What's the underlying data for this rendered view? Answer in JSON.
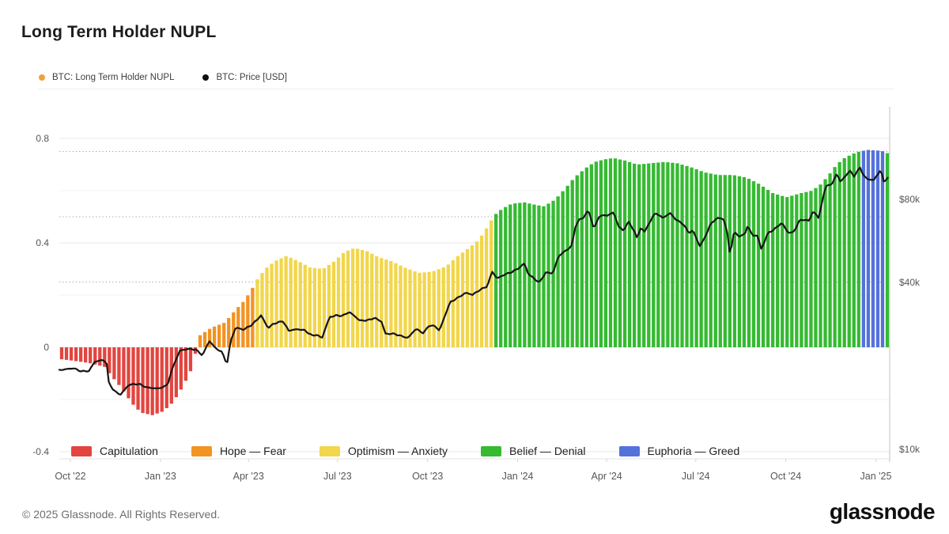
{
  "header": {
    "title": "Long Term Holder NUPL"
  },
  "top_legend": {
    "items": [
      {
        "label": "BTC: Long Term Holder NUPL",
        "color": "#eda23c"
      },
      {
        "label": "BTC: Price [USD]",
        "color": "#111111"
      }
    ]
  },
  "bottom_legend": {
    "items": [
      {
        "label": "Capitulation",
        "color": "#e2453f"
      },
      {
        "label": "Hope — Fear",
        "color": "#f29322"
      },
      {
        "label": "Optimism — Anxiety",
        "color": "#f2d64b"
      },
      {
        "label": "Belief — Denial",
        "color": "#35ba32"
      },
      {
        "label": "Euphoria — Greed",
        "color": "#5571da"
      }
    ]
  },
  "footer": {
    "copyright": "© 2025 Glassnode. All Rights Reserved.",
    "logo_text": "glassnode"
  },
  "chart_data": {
    "type": "bar+line",
    "title": "Long Term Holder NUPL",
    "x_axis": {
      "ticks": [
        {
          "date": "2022-10-01",
          "label": "Oct '22"
        },
        {
          "date": "2023-01-01",
          "label": "Jan '23"
        },
        {
          "date": "2023-04-01",
          "label": "Apr '23"
        },
        {
          "date": "2023-07-01",
          "label": "Jul '23"
        },
        {
          "date": "2023-10-01",
          "label": "Oct '23"
        },
        {
          "date": "2024-01-01",
          "label": "Jan '24"
        },
        {
          "date": "2024-04-01",
          "label": "Apr '24"
        },
        {
          "date": "2024-07-01",
          "label": "Jul '24"
        },
        {
          "date": "2024-10-01",
          "label": "Oct '24"
        },
        {
          "date": "2025-01-01",
          "label": "Jan '25"
        }
      ]
    },
    "left_axis": {
      "ticks": [
        {
          "label": "0.8",
          "value": 0.8
        },
        {
          "label": "0.4",
          "value": 0.4
        },
        {
          "label": "0",
          "value": 0
        },
        {
          "label": "-0.4",
          "value": -0.4
        }
      ],
      "range": [
        -0.43,
        0.91
      ]
    },
    "right_axis": {
      "scale": "log",
      "ticks": [
        {
          "label": "$80k",
          "value": 80000
        },
        {
          "label": "$40k",
          "value": 40000
        },
        {
          "label": "$10k",
          "value": 10000
        }
      ]
    },
    "grid": {
      "solid_levels": [
        0.8,
        0.6,
        0.4,
        0.2,
        0,
        -0.2,
        -0.4
      ],
      "dotted_levels": [
        0.25,
        0.5,
        0.75
      ]
    },
    "bands": [
      {
        "label": "Capitulation",
        "max": 0,
        "color": "#e2453f"
      },
      {
        "label": "Hope — Fear",
        "min": 0,
        "max": 0.25,
        "color": "#f29322"
      },
      {
        "label": "Optimism — Anxiety",
        "min": 0.25,
        "max": 0.5,
        "color": "#f2d64b"
      },
      {
        "label": "Belief — Denial",
        "min": 0.5,
        "max": 0.75,
        "color": "#35ba32"
      },
      {
        "label": "Euphoria — Greed",
        "min": 0.75,
        "color": "#5571da"
      }
    ],
    "series": [
      {
        "name": "BTC: Long Term Holder NUPL",
        "style": "bars",
        "axis": "left",
        "color_by_band": true,
        "keyframes": [
          [
            "2022-09-20",
            -0.045
          ],
          [
            "2022-10-01",
            -0.05
          ],
          [
            "2022-10-20",
            -0.06
          ],
          [
            "2022-11-05",
            -0.075
          ],
          [
            "2022-11-12",
            -0.11
          ],
          [
            "2022-11-22",
            -0.155
          ],
          [
            "2022-12-03",
            -0.215
          ],
          [
            "2022-12-12",
            -0.25
          ],
          [
            "2022-12-24",
            -0.26
          ],
          [
            "2023-01-04",
            -0.245
          ],
          [
            "2023-01-14",
            -0.21
          ],
          [
            "2023-01-24",
            -0.15
          ],
          [
            "2023-02-01",
            -0.09
          ],
          [
            "2023-02-06",
            -0.02
          ],
          [
            "2023-02-10",
            0.045
          ],
          [
            "2023-02-22",
            0.075
          ],
          [
            "2023-03-08",
            0.095
          ],
          [
            "2023-03-18",
            0.14
          ],
          [
            "2023-03-28",
            0.18
          ],
          [
            "2023-04-04",
            0.22
          ],
          [
            "2023-04-10",
            0.26
          ],
          [
            "2023-04-18",
            0.3
          ],
          [
            "2023-04-28",
            0.33
          ],
          [
            "2023-05-10",
            0.35
          ],
          [
            "2023-05-22",
            0.33
          ],
          [
            "2023-06-03",
            0.305
          ],
          [
            "2023-06-16",
            0.3
          ],
          [
            "2023-06-28",
            0.33
          ],
          [
            "2023-07-08",
            0.365
          ],
          [
            "2023-07-18",
            0.38
          ],
          [
            "2023-07-30",
            0.37
          ],
          [
            "2023-08-12",
            0.345
          ],
          [
            "2023-08-25",
            0.33
          ],
          [
            "2023-09-08",
            0.305
          ],
          [
            "2023-09-22",
            0.285
          ],
          [
            "2023-10-06",
            0.29
          ],
          [
            "2023-10-20",
            0.31
          ],
          [
            "2023-11-01",
            0.35
          ],
          [
            "2023-11-12",
            0.38
          ],
          [
            "2023-11-22",
            0.41
          ],
          [
            "2023-12-01",
            0.46
          ],
          [
            "2023-12-08",
            0.505
          ],
          [
            "2023-12-16",
            0.53
          ],
          [
            "2023-12-26",
            0.55
          ],
          [
            "2024-01-08",
            0.555
          ],
          [
            "2024-01-20",
            0.545
          ],
          [
            "2024-01-28",
            0.54
          ],
          [
            "2024-02-08",
            0.565
          ],
          [
            "2024-02-18",
            0.605
          ],
          [
            "2024-02-28",
            0.65
          ],
          [
            "2024-03-10",
            0.685
          ],
          [
            "2024-03-20",
            0.71
          ],
          [
            "2024-03-30",
            0.72
          ],
          [
            "2024-04-08",
            0.725
          ],
          [
            "2024-04-20",
            0.715
          ],
          [
            "2024-05-02",
            0.7
          ],
          [
            "2024-05-16",
            0.705
          ],
          [
            "2024-05-30",
            0.71
          ],
          [
            "2024-06-12",
            0.705
          ],
          [
            "2024-06-26",
            0.69
          ],
          [
            "2024-07-10",
            0.67
          ],
          [
            "2024-07-24",
            0.66
          ],
          [
            "2024-08-08",
            0.66
          ],
          [
            "2024-08-22",
            0.65
          ],
          [
            "2024-09-04",
            0.625
          ],
          [
            "2024-09-18",
            0.59
          ],
          [
            "2024-10-02",
            0.575
          ],
          [
            "2024-10-16",
            0.59
          ],
          [
            "2024-10-28",
            0.6
          ],
          [
            "2024-11-06",
            0.625
          ],
          [
            "2024-11-14",
            0.66
          ],
          [
            "2024-11-22",
            0.7
          ],
          [
            "2024-11-30",
            0.725
          ],
          [
            "2024-12-08",
            0.74
          ],
          [
            "2024-12-16",
            0.751
          ],
          [
            "2024-12-24",
            0.756
          ],
          [
            "2025-01-02",
            0.754
          ],
          [
            "2025-01-08",
            0.751
          ],
          [
            "2025-01-12",
            0.745
          ],
          [
            "2025-01-15",
            0.74
          ]
        ]
      },
      {
        "name": "BTC: Price [USD]",
        "style": "line",
        "axis": "right",
        "color": "#151515",
        "keyframes": [
          [
            "2022-09-20",
            19300
          ],
          [
            "2022-10-04",
            19600
          ],
          [
            "2022-10-12",
            19100
          ],
          [
            "2022-10-20",
            19150
          ],
          [
            "2022-10-26",
            20700
          ],
          [
            "2022-11-04",
            21000
          ],
          [
            "2022-11-07",
            20500
          ],
          [
            "2022-11-09",
            17500
          ],
          [
            "2022-11-14",
            16300
          ],
          [
            "2022-11-21",
            15700
          ],
          [
            "2022-11-30",
            17100
          ],
          [
            "2022-12-10",
            17200
          ],
          [
            "2022-12-18",
            16700
          ],
          [
            "2022-12-30",
            16550
          ],
          [
            "2023-01-08",
            17000
          ],
          [
            "2023-01-14",
            19900
          ],
          [
            "2023-01-21",
            22700
          ],
          [
            "2023-01-29",
            23000
          ],
          [
            "2023-02-06",
            22900
          ],
          [
            "2023-02-13",
            21800
          ],
          [
            "2023-02-20",
            24600
          ],
          [
            "2023-02-26",
            23200
          ],
          [
            "2023-03-05",
            22400
          ],
          [
            "2023-03-10",
            20200
          ],
          [
            "2023-03-14",
            24700
          ],
          [
            "2023-03-19",
            27500
          ],
          [
            "2023-03-27",
            27000
          ],
          [
            "2023-04-05",
            28200
          ],
          [
            "2023-04-14",
            30400
          ],
          [
            "2023-04-21",
            27300
          ],
          [
            "2023-04-26",
            28300
          ],
          [
            "2023-05-06",
            29000
          ],
          [
            "2023-05-12",
            26800
          ],
          [
            "2023-05-21",
            27100
          ],
          [
            "2023-05-28",
            26900
          ],
          [
            "2023-06-05",
            25700
          ],
          [
            "2023-06-10",
            25900
          ],
          [
            "2023-06-15",
            25100
          ],
          [
            "2023-06-23",
            30000
          ],
          [
            "2023-06-30",
            30400
          ],
          [
            "2023-07-06",
            30300
          ],
          [
            "2023-07-13",
            31300
          ],
          [
            "2023-07-24",
            29100
          ],
          [
            "2023-08-01",
            29200
          ],
          [
            "2023-08-08",
            29800
          ],
          [
            "2023-08-16",
            28700
          ],
          [
            "2023-08-18",
            26100
          ],
          [
            "2023-08-28",
            26100
          ],
          [
            "2023-09-01",
            25800
          ],
          [
            "2023-09-11",
            25200
          ],
          [
            "2023-09-19",
            27200
          ],
          [
            "2023-09-27",
            26200
          ],
          [
            "2023-10-02",
            27900
          ],
          [
            "2023-10-08",
            27900
          ],
          [
            "2023-10-13",
            26800
          ],
          [
            "2023-10-16",
            28500
          ],
          [
            "2023-10-24",
            33900
          ],
          [
            "2023-11-02",
            35400
          ],
          [
            "2023-11-09",
            36700
          ],
          [
            "2023-11-16",
            36100
          ],
          [
            "2023-11-24",
            37700
          ],
          [
            "2023-12-01",
            38700
          ],
          [
            "2023-12-06",
            43800
          ],
          [
            "2023-12-11",
            41300
          ],
          [
            "2023-12-18",
            42600
          ],
          [
            "2023-12-26",
            43600
          ],
          [
            "2024-01-02",
            45000
          ],
          [
            "2024-01-08",
            46900
          ],
          [
            "2024-01-12",
            42800
          ],
          [
            "2024-01-18",
            41300
          ],
          [
            "2024-01-23",
            39900
          ],
          [
            "2024-01-30",
            43500
          ],
          [
            "2024-02-06",
            43100
          ],
          [
            "2024-02-12",
            49900
          ],
          [
            "2024-02-19",
            52000
          ],
          [
            "2024-02-26",
            54500
          ],
          [
            "2024-02-28",
            62500
          ],
          [
            "2024-03-04",
            67500
          ],
          [
            "2024-03-08",
            68300
          ],
          [
            "2024-03-13",
            73100
          ],
          [
            "2024-03-19",
            62500
          ],
          [
            "2024-03-25",
            69900
          ],
          [
            "2024-04-01",
            69700
          ],
          [
            "2024-04-08",
            71600
          ],
          [
            "2024-04-13",
            63900
          ],
          [
            "2024-04-18",
            61300
          ],
          [
            "2024-04-23",
            66400
          ],
          [
            "2024-04-30",
            60600
          ],
          [
            "2024-05-02",
            57500
          ],
          [
            "2024-05-06",
            63200
          ],
          [
            "2024-05-10",
            60800
          ],
          [
            "2024-05-15",
            66200
          ],
          [
            "2024-05-21",
            71400
          ],
          [
            "2024-05-28",
            68400
          ],
          [
            "2024-06-05",
            71100
          ],
          [
            "2024-06-11",
            67300
          ],
          [
            "2024-06-18",
            65100
          ],
          [
            "2024-06-24",
            60300
          ],
          [
            "2024-06-28",
            61700
          ],
          [
            "2024-07-05",
            54000
          ],
          [
            "2024-07-10",
            57700
          ],
          [
            "2024-07-16",
            64800
          ],
          [
            "2024-07-22",
            68100
          ],
          [
            "2024-07-29",
            68200
          ],
          [
            "2024-08-02",
            61400
          ],
          [
            "2024-08-05",
            49800
          ],
          [
            "2024-08-09",
            60900
          ],
          [
            "2024-08-14",
            58700
          ],
          [
            "2024-08-20",
            59500
          ],
          [
            "2024-08-23",
            64100
          ],
          [
            "2024-08-28",
            59000
          ],
          [
            "2024-09-02",
            59100
          ],
          [
            "2024-09-06",
            52600
          ],
          [
            "2024-09-13",
            60500
          ],
          [
            "2024-09-18",
            61700
          ],
          [
            "2024-09-24",
            64300
          ],
          [
            "2024-09-27",
            65800
          ],
          [
            "2024-10-03",
            60600
          ],
          [
            "2024-10-09",
            60600
          ],
          [
            "2024-10-15",
            67000
          ],
          [
            "2024-10-21",
            67400
          ],
          [
            "2024-10-25",
            66600
          ],
          [
            "2024-10-29",
            72700
          ],
          [
            "2024-11-04",
            67800
          ],
          [
            "2024-11-06",
            75600
          ],
          [
            "2024-11-11",
            88700
          ],
          [
            "2024-11-13",
            90400
          ],
          [
            "2024-11-17",
            89800
          ],
          [
            "2024-11-22",
            99000
          ],
          [
            "2024-11-26",
            92000
          ],
          [
            "2024-12-01",
            97300
          ],
          [
            "2024-12-06",
            101000
          ],
          [
            "2024-12-10",
            96600
          ],
          [
            "2024-12-16",
            104500
          ],
          [
            "2024-12-19",
            97500
          ],
          [
            "2024-12-24",
            94300
          ],
          [
            "2024-12-30",
            93700
          ],
          [
            "2025-01-06",
            102100
          ],
          [
            "2025-01-09",
            92500
          ],
          [
            "2025-01-12",
            94500
          ],
          [
            "2025-01-15",
            97100
          ]
        ]
      }
    ]
  }
}
